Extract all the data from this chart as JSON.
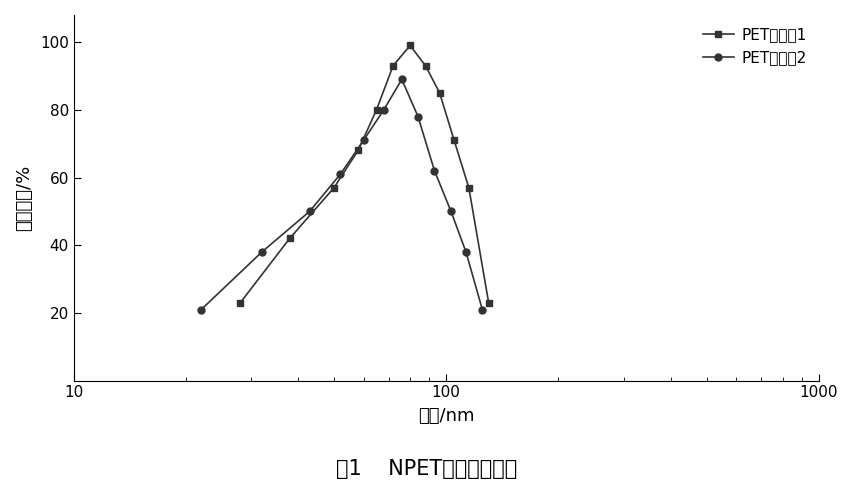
{
  "series1_label": "PET悬浮涵1",
  "series2_label": "PET悬浮涵2",
  "series1_x": [
    28,
    38,
    50,
    58,
    65,
    72,
    80,
    88,
    96,
    105,
    115,
    130
  ],
  "series1_y": [
    23,
    42,
    57,
    68,
    80,
    93,
    99,
    93,
    85,
    71,
    57,
    23
  ],
  "series2_x": [
    22,
    32,
    43,
    52,
    60,
    68,
    76,
    84,
    93,
    103,
    113,
    125
  ],
  "series2_y": [
    21,
    38,
    50,
    61,
    71,
    80,
    89,
    78,
    62,
    50,
    38,
    21
  ],
  "xlabel": "直径/nm",
  "ylabel": "粒径分布/%",
  "caption": "图1    NPET的粒径分布图",
  "xlim": [
    10,
    1000
  ],
  "ylim": [
    0,
    108
  ],
  "yticks": [
    20,
    40,
    60,
    80,
    100
  ],
  "line_color": "#333333",
  "background_color": "#ffffff",
  "font_size_label": 13,
  "font_size_tick": 11,
  "font_size_legend": 11,
  "font_size_caption": 15
}
